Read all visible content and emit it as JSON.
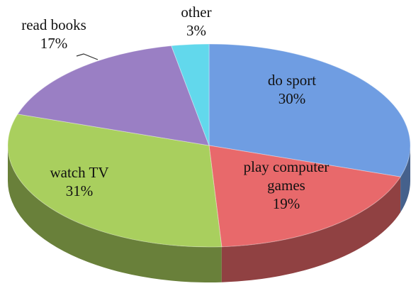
{
  "chart_data": {
    "type": "pie3d",
    "categories": [
      "do sport",
      "play computer games",
      "watch TV",
      "read books",
      "other"
    ],
    "values": [
      30,
      19,
      31,
      17,
      3
    ],
    "value_labels": [
      "30%",
      "19%",
      "31%",
      "17%",
      "3%"
    ],
    "colors": [
      "#6f9de2",
      "#e8696b",
      "#a9cf5e",
      "#9a7fc4",
      "#62d8ec"
    ]
  }
}
